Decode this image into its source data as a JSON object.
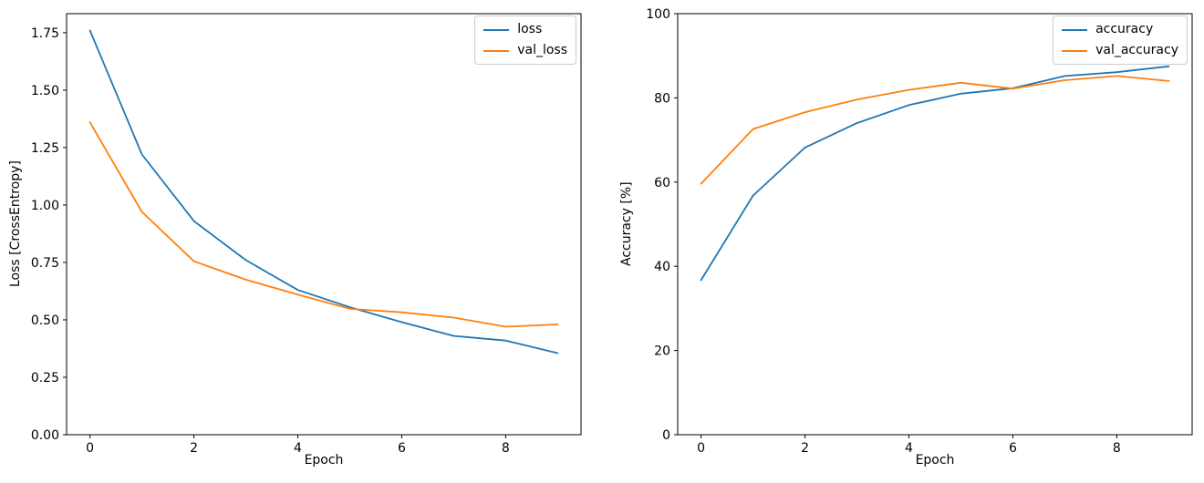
{
  "figure": {
    "background": "#ffffff",
    "axis_color": "#000000",
    "legend_border_color": "#cccccc"
  },
  "chart_data": [
    {
      "type": "line",
      "title": "",
      "xlabel": "Epoch",
      "ylabel": "Loss [CrossEntropy]",
      "grid": false,
      "legend_position": "upper right",
      "x": [
        0,
        1,
        2,
        3,
        4,
        5,
        6,
        7,
        8,
        9
      ],
      "xlim": [
        -0.45,
        9.45
      ],
      "ylim": [
        0,
        1.833
      ],
      "xticks": [
        0,
        2,
        4,
        6,
        8
      ],
      "xtick_labels": [
        "0",
        "2",
        "4",
        "6",
        "8"
      ],
      "yticks": [
        0,
        0.25,
        0.5,
        0.75,
        1.0,
        1.25,
        1.5,
        1.75
      ],
      "ytick_labels": [
        "0.00",
        "0.25",
        "0.50",
        "0.75",
        "1.00",
        "1.25",
        "1.50",
        "1.75"
      ],
      "series": [
        {
          "name": "loss",
          "color": "#1f77b4",
          "values": [
            1.76,
            1.22,
            0.93,
            0.76,
            0.63,
            0.555,
            0.49,
            0.43,
            0.41,
            0.355
          ]
        },
        {
          "name": "val_loss",
          "color": "#ff7f0e",
          "values": [
            1.36,
            0.97,
            0.755,
            0.675,
            0.61,
            0.548,
            0.533,
            0.51,
            0.47,
            0.48
          ]
        }
      ]
    },
    {
      "type": "line",
      "title": "",
      "xlabel": "Epoch",
      "ylabel": "Accuracy [%]",
      "grid": false,
      "legend_position": "upper right",
      "x": [
        0,
        1,
        2,
        3,
        4,
        5,
        6,
        7,
        8,
        9
      ],
      "xlim": [
        -0.45,
        9.45
      ],
      "ylim": [
        0,
        100
      ],
      "xticks": [
        0,
        2,
        4,
        6,
        8
      ],
      "xtick_labels": [
        "0",
        "2",
        "4",
        "6",
        "8"
      ],
      "yticks": [
        0,
        20,
        40,
        60,
        80,
        100
      ],
      "ytick_labels": [
        "0",
        "20",
        "40",
        "60",
        "80",
        "100"
      ],
      "series": [
        {
          "name": "accuracy",
          "color": "#1f77b4",
          "values": [
            36.7,
            56.8,
            68.2,
            74.0,
            78.3,
            81.0,
            82.3,
            85.2,
            86.1,
            87.5
          ]
        },
        {
          "name": "val_accuracy",
          "color": "#ff7f0e",
          "values": [
            59.6,
            72.6,
            76.6,
            79.6,
            81.9,
            83.6,
            82.2,
            84.2,
            85.2,
            84.0
          ]
        }
      ]
    }
  ]
}
